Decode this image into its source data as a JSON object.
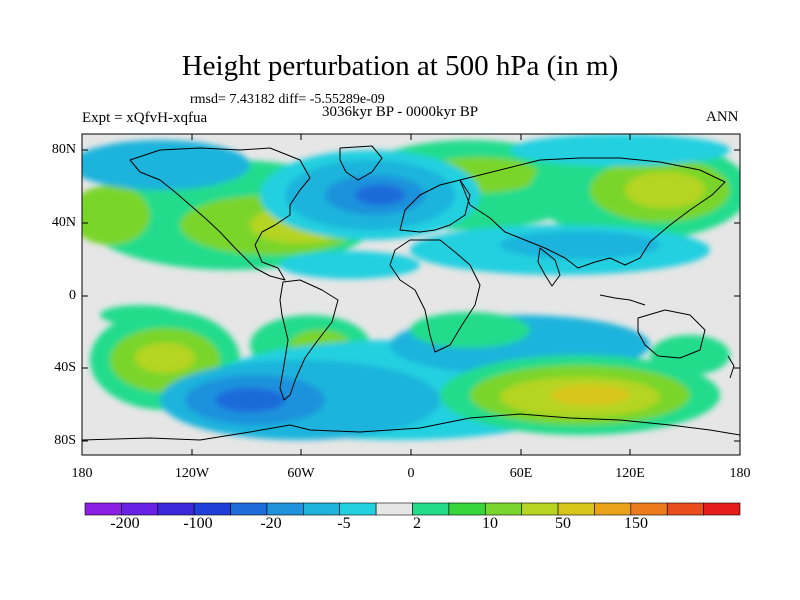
{
  "title": "Height perturbation at 500 hPa (in m)",
  "stats": "rmsd= 7.43182 diff= -5.55289e-09",
  "experiment": "Expt = xQfvH-xqfua",
  "period": "3036kyr BP - 0000kyr BP",
  "season": "ANN",
  "lat_labels": [
    "80N",
    "40N",
    "0",
    "40S",
    "80S"
  ],
  "lon_labels": [
    "180",
    "120W",
    "60W",
    "0",
    "60E",
    "120E",
    "180"
  ],
  "colorbar": {
    "colors": [
      "#8b1fe4",
      "#6a21e6",
      "#3b28da",
      "#1f3fd8",
      "#1e6ad9",
      "#1f92dc",
      "#1fb4dc",
      "#22d0e0",
      "#e6e6e6",
      "#22dc8c",
      "#38d63a",
      "#7ad52c",
      "#b6d420",
      "#d8c51a",
      "#e9a21a",
      "#ed7a1c",
      "#ea4d1c",
      "#e51c1c"
    ],
    "labels": [
      "-200",
      "-100",
      "-20",
      "-5",
      "2",
      "10",
      "50",
      "150"
    ]
  },
  "colors": {
    "background": "#e6e6e6",
    "coast": "#000000"
  }
}
